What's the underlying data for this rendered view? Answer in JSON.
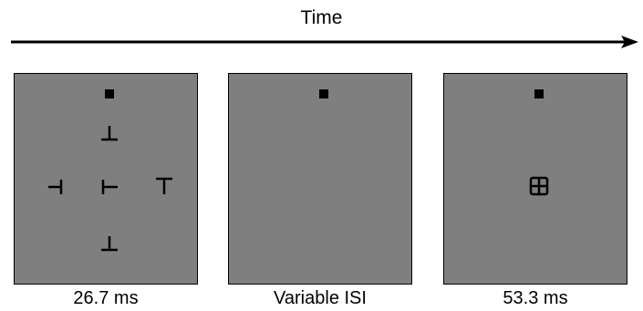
{
  "header": {
    "time_label": "Time"
  },
  "panels": [
    {
      "caption": "26.7 ms",
      "fixation": true,
      "stimuli": [
        "T-up-inverted",
        "T-left",
        "T-right-rotated",
        "T-upright",
        "T-up-inverted-bottom"
      ]
    },
    {
      "caption": "Variable ISI",
      "fixation": true,
      "stimuli": []
    },
    {
      "caption": "53.3 ms",
      "fixation": true,
      "stimuli": [
        "mask"
      ]
    }
  ],
  "colors": {
    "panel_gray": "#7f7f7f",
    "stroke": "#000000"
  },
  "icons": [
    "time-arrow-icon",
    "fixation-square-icon",
    "t-letter-icon",
    "mask-grid-icon"
  ]
}
